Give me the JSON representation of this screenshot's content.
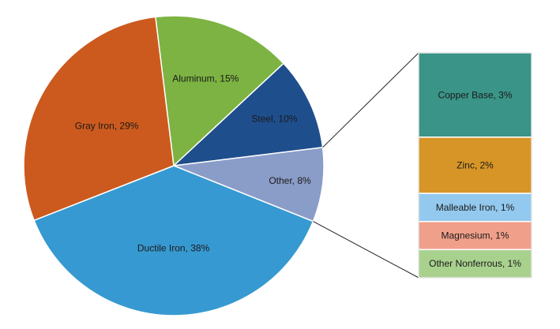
{
  "chart_data": {
    "type": "pie",
    "title": "",
    "slices": [
      {
        "label": "Aluminum, 15%",
        "value": 15,
        "color": "#7cb342"
      },
      {
        "label": "Steel, 10%",
        "value": 10,
        "color": "#1f4e8c"
      },
      {
        "label": "Other, 8%",
        "value": 8,
        "color": "#8a9cc8"
      },
      {
        "label": "Ductile Iron, 38%",
        "value": 38,
        "color": "#3799d1"
      },
      {
        "label": "Gray Iron, 29%",
        "value": 29,
        "color": "#cc5a1e"
      }
    ],
    "breakdown_of": "Other, 8%",
    "breakdown": [
      {
        "label": "Copper Base, 3%",
        "value": 3,
        "color": "#3a9488"
      },
      {
        "label": "Zinc, 2%",
        "value": 2,
        "color": "#d79527"
      },
      {
        "label": "Malleable Iron, 1%",
        "value": 1,
        "color": "#93c9ee"
      },
      {
        "label": "Magnesium, 1%",
        "value": 1,
        "color": "#f0a08a"
      },
      {
        "label": "Other Nonferrous, 1%",
        "value": 1,
        "color": "#a9d18e"
      }
    ]
  }
}
